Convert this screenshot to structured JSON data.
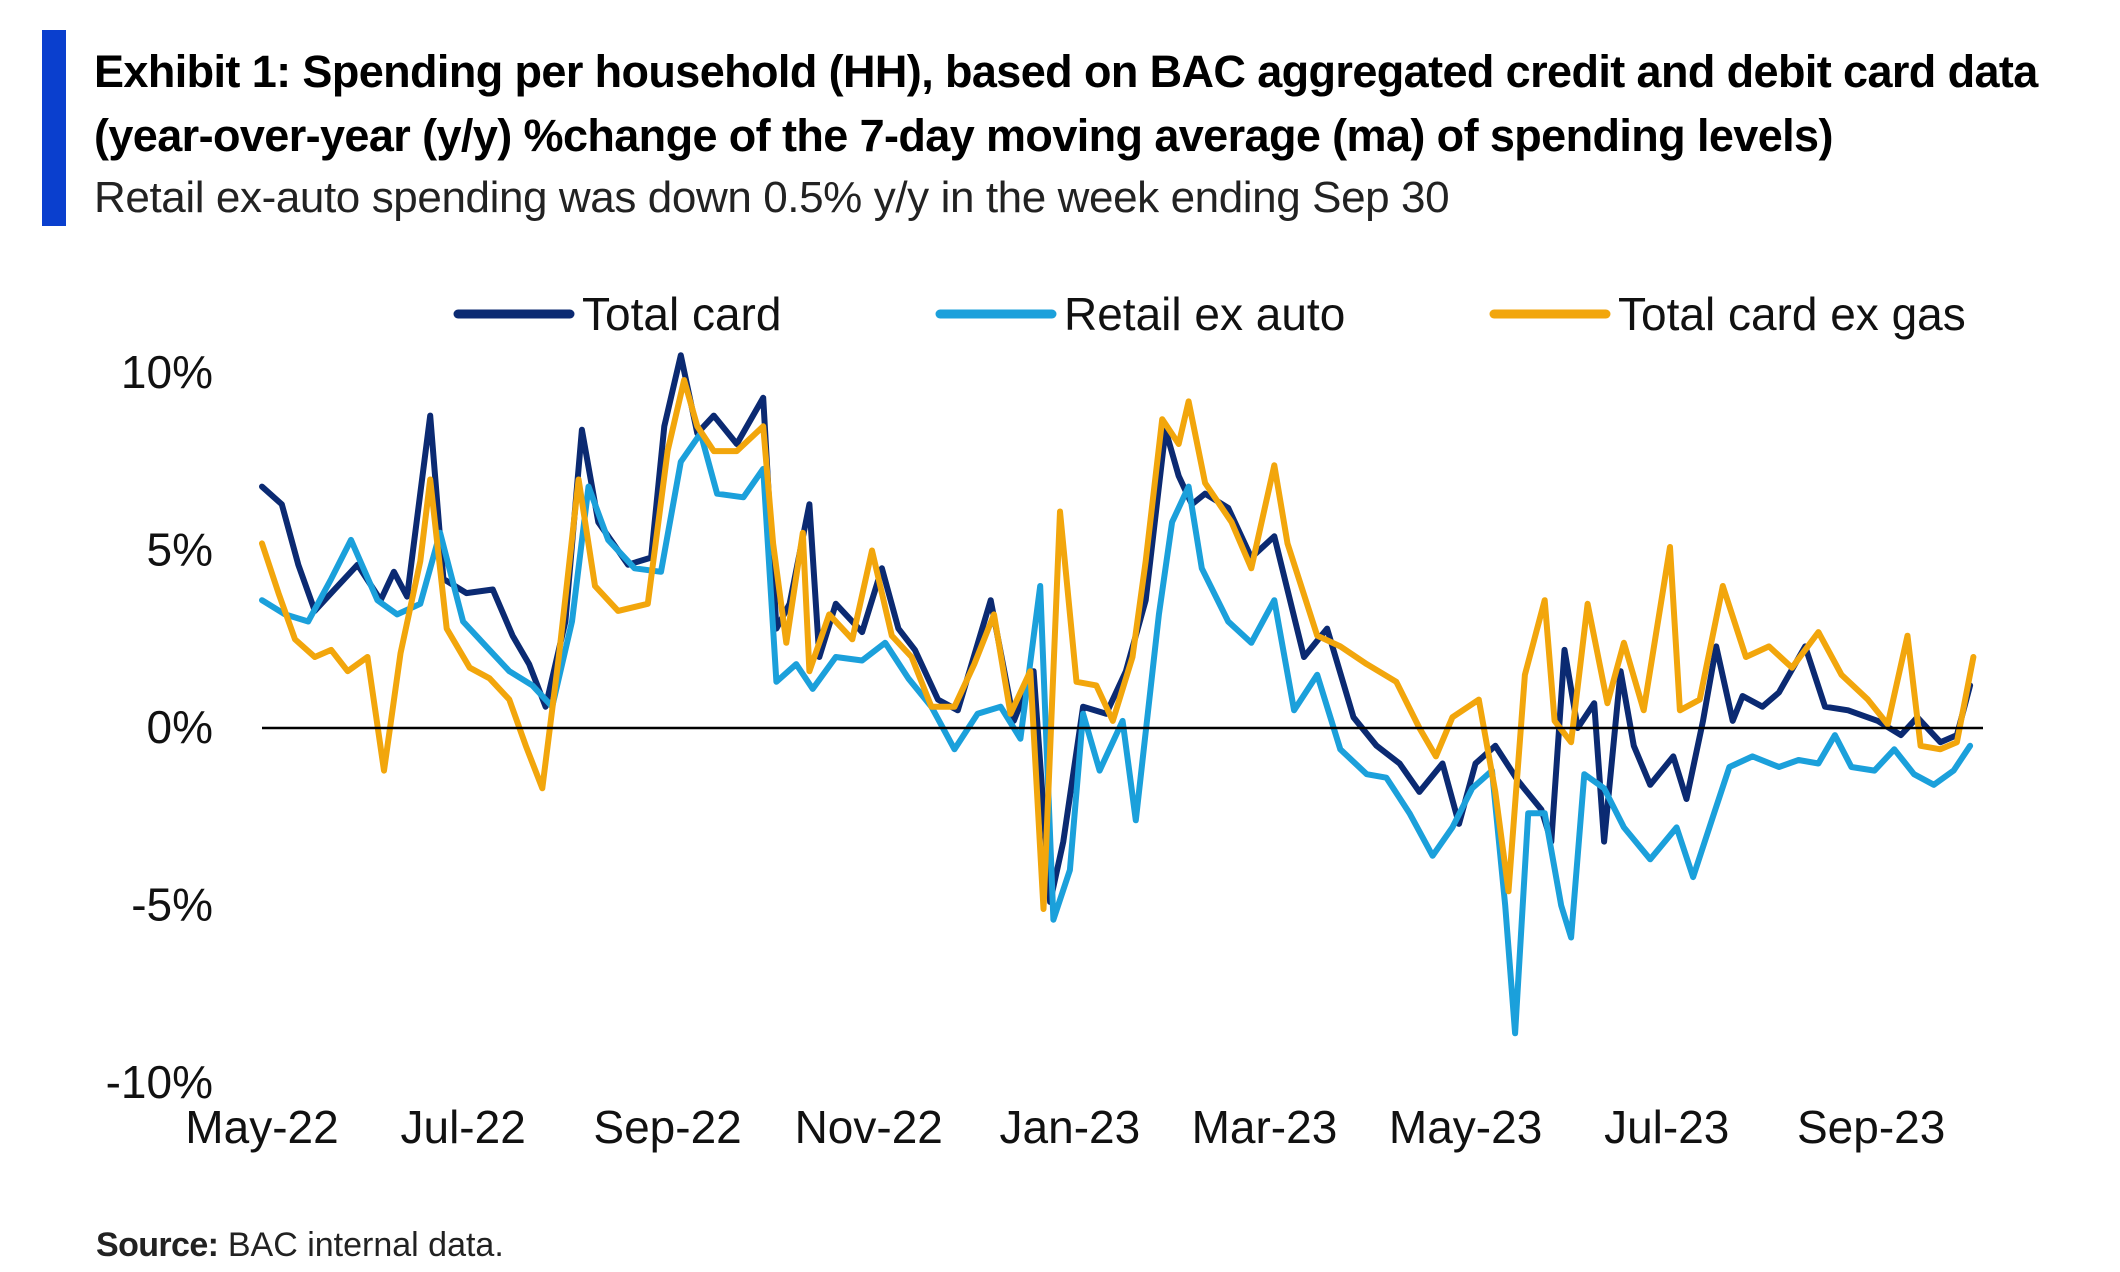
{
  "header": {
    "title": "Exhibit 1: Spending per household (HH), based on BAC aggregated credit and debit card data (year-over-year (y/y)  %change of the 7-day moving average (ma) of spending levels)",
    "subtitle": "Retail ex-auto spending was down 0.5% y/y in the week ending Sep 30"
  },
  "footer": {
    "source_label": "Source:",
    "source_text": "BAC internal data."
  },
  "colors": {
    "accent_bar": "#0a3fce",
    "total_card": "#0b2a72",
    "retail_ex_auto": "#1ba0db",
    "total_card_ex_gas": "#f2a60c",
    "zero_line": "#000000"
  },
  "chart_data": {
    "type": "line",
    "ylim": [
      -10,
      10
    ],
    "yticks": [
      10,
      5,
      0,
      -5,
      -10
    ],
    "ytick_labels": [
      "10%",
      "5%",
      "0%",
      "-5%",
      "-10%"
    ],
    "x_range": [
      "2022-05-01",
      "2023-10-04"
    ],
    "xticks": [
      "2022-05-01",
      "2022-07-01",
      "2022-09-01",
      "2022-11-01",
      "2023-01-01",
      "2023-03-01",
      "2023-05-01",
      "2023-07-01",
      "2023-09-01"
    ],
    "xtick_labels": [
      "May-22",
      "Jul-22",
      "Sep-22",
      "Nov-22",
      "Jan-23",
      "Mar-23",
      "May-23",
      "Jul-23",
      "Sep-23"
    ],
    "legend_position": "top",
    "reference_line": 0,
    "series": [
      {
        "name": "Total card",
        "color": "#0b2a72",
        "points": [
          [
            "2022-05-01",
            6.8
          ],
          [
            "2022-05-07",
            6.3
          ],
          [
            "2022-05-12",
            4.6
          ],
          [
            "2022-05-17",
            3.3
          ],
          [
            "2022-05-23",
            3.9
          ],
          [
            "2022-05-30",
            4.6
          ],
          [
            "2022-06-06",
            3.6
          ],
          [
            "2022-06-10",
            4.4
          ],
          [
            "2022-06-14",
            3.7
          ],
          [
            "2022-06-21",
            8.8
          ],
          [
            "2022-06-25",
            4.2
          ],
          [
            "2022-07-02",
            3.8
          ],
          [
            "2022-07-10",
            3.9
          ],
          [
            "2022-07-16",
            2.6
          ],
          [
            "2022-07-21",
            1.8
          ],
          [
            "2022-07-26",
            0.6
          ],
          [
            "2022-08-01",
            3.0
          ],
          [
            "2022-08-06",
            8.4
          ],
          [
            "2022-08-11",
            5.8
          ],
          [
            "2022-08-20",
            4.6
          ],
          [
            "2022-08-27",
            4.8
          ],
          [
            "2022-08-31",
            8.5
          ],
          [
            "2022-09-05",
            10.5
          ],
          [
            "2022-09-10",
            8.3
          ],
          [
            "2022-09-15",
            8.8
          ],
          [
            "2022-09-22",
            8.0
          ],
          [
            "2022-09-30",
            9.3
          ],
          [
            "2022-10-04",
            2.8
          ],
          [
            "2022-10-08",
            3.5
          ],
          [
            "2022-10-14",
            6.3
          ],
          [
            "2022-10-17",
            2.0
          ],
          [
            "2022-10-22",
            3.5
          ],
          [
            "2022-10-30",
            2.7
          ],
          [
            "2022-11-05",
            4.5
          ],
          [
            "2022-11-10",
            2.8
          ],
          [
            "2022-11-15",
            2.2
          ],
          [
            "2022-11-22",
            0.8
          ],
          [
            "2022-11-28",
            0.5
          ],
          [
            "2022-12-08",
            3.6
          ],
          [
            "2022-12-15",
            0.2
          ],
          [
            "2022-12-21",
            1.6
          ],
          [
            "2022-12-26",
            -4.9
          ],
          [
            "2022-12-30",
            -3.2
          ],
          [
            "2023-01-05",
            0.6
          ],
          [
            "2023-01-12",
            0.4
          ],
          [
            "2023-01-18",
            1.6
          ],
          [
            "2023-01-24",
            3.6
          ],
          [
            "2023-01-30",
            8.4
          ],
          [
            "2023-02-03",
            7.1
          ],
          [
            "2023-02-07",
            6.3
          ],
          [
            "2023-02-11",
            6.6
          ],
          [
            "2023-02-18",
            6.2
          ],
          [
            "2023-02-25",
            4.8
          ],
          [
            "2023-03-04",
            5.4
          ],
          [
            "2023-03-13",
            2.0
          ],
          [
            "2023-03-20",
            2.8
          ],
          [
            "2023-03-28",
            0.3
          ],
          [
            "2023-04-04",
            -0.5
          ],
          [
            "2023-04-11",
            -1.0
          ],
          [
            "2023-04-17",
            -1.8
          ],
          [
            "2023-04-24",
            -1.0
          ],
          [
            "2023-04-29",
            -2.7
          ],
          [
            "2023-05-04",
            -1.0
          ],
          [
            "2023-05-10",
            -0.5
          ],
          [
            "2023-05-17",
            -1.5
          ],
          [
            "2023-05-24",
            -2.3
          ],
          [
            "2023-05-27",
            -3.2
          ],
          [
            "2023-05-31",
            2.2
          ],
          [
            "2023-06-04",
            0.0
          ],
          [
            "2023-06-09",
            0.7
          ],
          [
            "2023-06-12",
            -3.2
          ],
          [
            "2023-06-17",
            1.6
          ],
          [
            "2023-06-21",
            -0.5
          ],
          [
            "2023-06-26",
            -1.6
          ],
          [
            "2023-07-03",
            -0.8
          ],
          [
            "2023-07-07",
            -2.0
          ],
          [
            "2023-07-12",
            0.2
          ],
          [
            "2023-07-16",
            2.3
          ],
          [
            "2023-07-21",
            0.2
          ],
          [
            "2023-07-24",
            0.9
          ],
          [
            "2023-07-30",
            0.6
          ],
          [
            "2023-08-04",
            1.0
          ],
          [
            "2023-08-12",
            2.3
          ],
          [
            "2023-08-18",
            0.6
          ],
          [
            "2023-08-25",
            0.5
          ],
          [
            "2023-09-03",
            0.2
          ],
          [
            "2023-09-10",
            -0.2
          ],
          [
            "2023-09-15",
            0.3
          ],
          [
            "2023-09-22",
            -0.4
          ],
          [
            "2023-09-27",
            -0.2
          ],
          [
            "2023-10-01",
            1.2
          ]
        ]
      },
      {
        "name": "Retail ex auto",
        "color": "#1ba0db",
        "points": [
          [
            "2022-05-01",
            3.6
          ],
          [
            "2022-05-08",
            3.2
          ],
          [
            "2022-05-15",
            3.0
          ],
          [
            "2022-05-22",
            4.2
          ],
          [
            "2022-05-28",
            5.3
          ],
          [
            "2022-06-05",
            3.6
          ],
          [
            "2022-06-11",
            3.2
          ],
          [
            "2022-06-18",
            3.5
          ],
          [
            "2022-06-24",
            5.5
          ],
          [
            "2022-07-01",
            3.0
          ],
          [
            "2022-07-08",
            2.3
          ],
          [
            "2022-07-15",
            1.6
          ],
          [
            "2022-07-22",
            1.2
          ],
          [
            "2022-07-28",
            0.6
          ],
          [
            "2022-08-03",
            3.0
          ],
          [
            "2022-08-08",
            6.8
          ],
          [
            "2022-08-14",
            5.3
          ],
          [
            "2022-08-22",
            4.5
          ],
          [
            "2022-08-30",
            4.4
          ],
          [
            "2022-09-05",
            7.5
          ],
          [
            "2022-09-11",
            8.3
          ],
          [
            "2022-09-16",
            6.6
          ],
          [
            "2022-09-24",
            6.5
          ],
          [
            "2022-09-30",
            7.3
          ],
          [
            "2022-10-04",
            1.3
          ],
          [
            "2022-10-10",
            1.8
          ],
          [
            "2022-10-15",
            1.1
          ],
          [
            "2022-10-22",
            2.0
          ],
          [
            "2022-10-30",
            1.9
          ],
          [
            "2022-11-06",
            2.4
          ],
          [
            "2022-11-13",
            1.4
          ],
          [
            "2022-11-20",
            0.6
          ],
          [
            "2022-11-27",
            -0.6
          ],
          [
            "2022-12-04",
            0.4
          ],
          [
            "2022-12-11",
            0.6
          ],
          [
            "2022-12-17",
            -0.3
          ],
          [
            "2022-12-23",
            4.0
          ],
          [
            "2022-12-27",
            -5.4
          ],
          [
            "2023-01-01",
            -4.0
          ],
          [
            "2023-01-05",
            0.4
          ],
          [
            "2023-01-10",
            -1.2
          ],
          [
            "2023-01-17",
            0.2
          ],
          [
            "2023-01-21",
            -2.6
          ],
          [
            "2023-01-28",
            3.2
          ],
          [
            "2023-02-01",
            5.8
          ],
          [
            "2023-02-06",
            6.8
          ],
          [
            "2023-02-10",
            4.5
          ],
          [
            "2023-02-18",
            3.0
          ],
          [
            "2023-02-25",
            2.4
          ],
          [
            "2023-03-04",
            3.6
          ],
          [
            "2023-03-10",
            0.5
          ],
          [
            "2023-03-17",
            1.5
          ],
          [
            "2023-03-24",
            -0.6
          ],
          [
            "2023-04-01",
            -1.3
          ],
          [
            "2023-04-07",
            -1.4
          ],
          [
            "2023-04-14",
            -2.4
          ],
          [
            "2023-04-21",
            -3.6
          ],
          [
            "2023-04-27",
            -2.8
          ],
          [
            "2023-05-03",
            -1.7
          ],
          [
            "2023-05-09",
            -1.2
          ],
          [
            "2023-05-13",
            -5.0
          ],
          [
            "2023-05-16",
            -8.6
          ],
          [
            "2023-05-20",
            -2.4
          ],
          [
            "2023-05-25",
            -2.4
          ],
          [
            "2023-05-30",
            -5.0
          ],
          [
            "2023-06-02",
            -5.9
          ],
          [
            "2023-06-06",
            -1.3
          ],
          [
            "2023-06-12",
            -1.7
          ],
          [
            "2023-06-18",
            -2.8
          ],
          [
            "2023-06-26",
            -3.7
          ],
          [
            "2023-07-04",
            -2.8
          ],
          [
            "2023-07-09",
            -4.2
          ],
          [
            "2023-07-15",
            -2.5
          ],
          [
            "2023-07-20",
            -1.1
          ],
          [
            "2023-07-27",
            -0.8
          ],
          [
            "2023-08-04",
            -1.1
          ],
          [
            "2023-08-10",
            -0.9
          ],
          [
            "2023-08-16",
            -1.0
          ],
          [
            "2023-08-21",
            -0.2
          ],
          [
            "2023-08-26",
            -1.1
          ],
          [
            "2023-09-02",
            -1.2
          ],
          [
            "2023-09-08",
            -0.6
          ],
          [
            "2023-09-14",
            -1.3
          ],
          [
            "2023-09-20",
            -1.6
          ],
          [
            "2023-09-26",
            -1.2
          ],
          [
            "2023-10-01",
            -0.5
          ]
        ]
      },
      {
        "name": "Total card ex gas",
        "color": "#f2a60c",
        "points": [
          [
            "2022-05-01",
            5.2
          ],
          [
            "2022-05-06",
            3.8
          ],
          [
            "2022-05-11",
            2.5
          ],
          [
            "2022-05-17",
            2.0
          ],
          [
            "2022-05-22",
            2.2
          ],
          [
            "2022-05-27",
            1.6
          ],
          [
            "2022-06-02",
            2.0
          ],
          [
            "2022-06-07",
            -1.2
          ],
          [
            "2022-06-12",
            2.1
          ],
          [
            "2022-06-18",
            4.7
          ],
          [
            "2022-06-21",
            7.0
          ],
          [
            "2022-06-26",
            2.8
          ],
          [
            "2022-07-03",
            1.7
          ],
          [
            "2022-07-09",
            1.4
          ],
          [
            "2022-07-15",
            0.8
          ],
          [
            "2022-07-20",
            -0.5
          ],
          [
            "2022-07-25",
            -1.7
          ],
          [
            "2022-07-30",
            2.0
          ],
          [
            "2022-08-05",
            7.0
          ],
          [
            "2022-08-10",
            4.0
          ],
          [
            "2022-08-17",
            3.3
          ],
          [
            "2022-08-26",
            3.5
          ],
          [
            "2022-09-01",
            7.8
          ],
          [
            "2022-09-06",
            9.8
          ],
          [
            "2022-09-10",
            8.5
          ],
          [
            "2022-09-15",
            7.8
          ],
          [
            "2022-09-22",
            7.8
          ],
          [
            "2022-09-30",
            8.5
          ],
          [
            "2022-10-03",
            5.2
          ],
          [
            "2022-10-07",
            2.4
          ],
          [
            "2022-10-12",
            5.5
          ],
          [
            "2022-10-14",
            1.6
          ],
          [
            "2022-10-20",
            3.2
          ],
          [
            "2022-10-27",
            2.5
          ],
          [
            "2022-11-02",
            5.0
          ],
          [
            "2022-11-08",
            2.6
          ],
          [
            "2022-11-14",
            2.0
          ],
          [
            "2022-11-20",
            0.6
          ],
          [
            "2022-11-27",
            0.6
          ],
          [
            "2022-12-03",
            1.8
          ],
          [
            "2022-12-09",
            3.2
          ],
          [
            "2022-12-14",
            0.4
          ],
          [
            "2022-12-20",
            1.6
          ],
          [
            "2022-12-24",
            -5.1
          ],
          [
            "2022-12-29",
            6.1
          ],
          [
            "2023-01-03",
            1.3
          ],
          [
            "2023-01-09",
            1.2
          ],
          [
            "2023-01-14",
            0.2
          ],
          [
            "2023-01-20",
            2.0
          ],
          [
            "2023-01-24",
            4.7
          ],
          [
            "2023-01-29",
            8.7
          ],
          [
            "2023-02-03",
            8.0
          ],
          [
            "2023-02-06",
            9.2
          ],
          [
            "2023-02-11",
            6.9
          ],
          [
            "2023-02-19",
            5.8
          ],
          [
            "2023-02-25",
            4.5
          ],
          [
            "2023-03-04",
            7.4
          ],
          [
            "2023-03-08",
            5.2
          ],
          [
            "2023-03-17",
            2.6
          ],
          [
            "2023-03-24",
            2.3
          ],
          [
            "2023-04-01",
            1.8
          ],
          [
            "2023-04-10",
            1.3
          ],
          [
            "2023-04-17",
            0.0
          ],
          [
            "2023-04-22",
            -0.8
          ],
          [
            "2023-04-27",
            0.3
          ],
          [
            "2023-05-05",
            0.8
          ],
          [
            "2023-05-10",
            -1.8
          ],
          [
            "2023-05-14",
            -4.6
          ],
          [
            "2023-05-19",
            1.5
          ],
          [
            "2023-05-25",
            3.6
          ],
          [
            "2023-05-28",
            0.2
          ],
          [
            "2023-06-02",
            -0.4
          ],
          [
            "2023-06-07",
            3.5
          ],
          [
            "2023-06-13",
            0.7
          ],
          [
            "2023-06-18",
            2.4
          ],
          [
            "2023-06-24",
            0.5
          ],
          [
            "2023-07-02",
            5.1
          ],
          [
            "2023-07-05",
            0.5
          ],
          [
            "2023-07-11",
            0.8
          ],
          [
            "2023-07-18",
            4.0
          ],
          [
            "2023-07-25",
            2.0
          ],
          [
            "2023-08-01",
            2.3
          ],
          [
            "2023-08-08",
            1.7
          ],
          [
            "2023-08-16",
            2.7
          ],
          [
            "2023-08-23",
            1.5
          ],
          [
            "2023-08-31",
            0.8
          ],
          [
            "2023-09-06",
            0.1
          ],
          [
            "2023-09-12",
            2.6
          ],
          [
            "2023-09-16",
            -0.5
          ],
          [
            "2023-09-22",
            -0.6
          ],
          [
            "2023-09-27",
            -0.4
          ],
          [
            "2023-10-02",
            2.0
          ]
        ]
      }
    ]
  }
}
